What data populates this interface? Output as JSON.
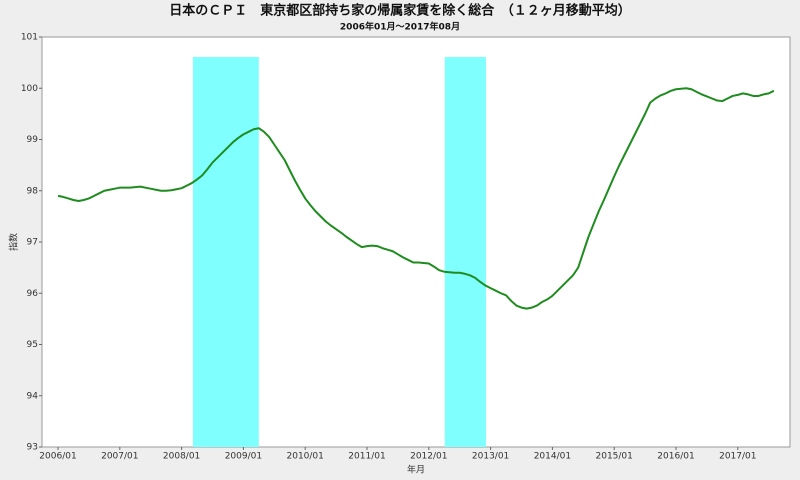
{
  "chart_data": {
    "type": "line",
    "title": "日本のＣＰＩ　東京都区部持ち家の帰属家賃を除く総合　（１２ヶ月移動平均）",
    "subtitle": "2006年01月～2017年08月",
    "x_label": "年月",
    "y_label": "指数",
    "color": "#1e8c1e",
    "shade_color": "#80ffff",
    "shaded_ranges": [
      [
        26.2,
        39.0
      ],
      [
        75.1,
        83.1
      ]
    ],
    "categories": [
      "2006/01",
      null,
      null,
      null,
      null,
      null,
      null,
      null,
      null,
      null,
      null,
      null,
      "2007/01",
      null,
      null,
      null,
      null,
      null,
      null,
      null,
      null,
      null,
      null,
      null,
      "2008/01",
      null,
      null,
      null,
      null,
      null,
      null,
      null,
      null,
      null,
      null,
      null,
      "2009/01",
      null,
      null,
      null,
      null,
      null,
      null,
      null,
      null,
      null,
      null,
      null,
      "2010/01",
      null,
      null,
      null,
      null,
      null,
      null,
      null,
      null,
      null,
      null,
      null,
      "2011/01",
      null,
      null,
      null,
      null,
      null,
      null,
      null,
      null,
      null,
      null,
      null,
      "2012/01",
      null,
      null,
      null,
      null,
      null,
      null,
      null,
      null,
      null,
      null,
      null,
      "2013/01",
      null,
      null,
      null,
      null,
      null,
      null,
      null,
      null,
      null,
      null,
      null,
      "2014/01",
      null,
      null,
      null,
      null,
      null,
      null,
      null,
      null,
      null,
      null,
      null,
      "2015/01",
      null,
      null,
      null,
      null,
      null,
      null,
      null,
      null,
      null,
      null,
      null,
      "2016/01",
      null,
      null,
      null,
      null,
      null,
      null,
      null,
      null,
      null,
      null,
      null,
      "2017/01",
      null,
      null,
      null,
      null,
      null,
      null,
      null
    ],
    "values": [
      97.9,
      97.88,
      97.85,
      97.82,
      97.8,
      97.82,
      97.85,
      97.9,
      97.95,
      98.0,
      98.02,
      98.04,
      98.06,
      98.06,
      98.06,
      98.07,
      98.08,
      98.06,
      98.04,
      98.02,
      98.0,
      98.0,
      98.01,
      98.03,
      98.05,
      98.1,
      98.15,
      98.22,
      98.3,
      98.42,
      98.55,
      98.65,
      98.75,
      98.85,
      98.95,
      99.03,
      99.1,
      99.15,
      99.2,
      99.22,
      99.15,
      99.05,
      98.9,
      98.75,
      98.6,
      98.4,
      98.2,
      98.02,
      97.85,
      97.72,
      97.6,
      97.5,
      97.4,
      97.32,
      97.25,
      97.18,
      97.1,
      97.03,
      96.96,
      96.9,
      96.92,
      96.93,
      96.92,
      96.88,
      96.85,
      96.82,
      96.76,
      96.7,
      96.65,
      96.6,
      96.6,
      96.59,
      96.58,
      96.52,
      96.45,
      96.42,
      96.41,
      96.4,
      96.4,
      96.38,
      96.35,
      96.3,
      96.22,
      96.15,
      96.1,
      96.05,
      96.0,
      95.96,
      95.85,
      95.76,
      95.72,
      95.7,
      95.72,
      95.76,
      95.83,
      95.88,
      95.95,
      96.05,
      96.15,
      96.25,
      96.35,
      96.5,
      96.8,
      97.1,
      97.35,
      97.6,
      97.82,
      98.05,
      98.28,
      98.5,
      98.7,
      98.9,
      99.1,
      99.3,
      99.5,
      99.72,
      99.8,
      99.86,
      99.9,
      99.95,
      99.98,
      99.99,
      100.0,
      99.98,
      99.93,
      99.88,
      99.84,
      99.8,
      99.76,
      99.75,
      99.8,
      99.85,
      99.87,
      99.9,
      99.88,
      99.85,
      99.85,
      99.88,
      99.9,
      99.95
    ],
    "ylim": [
      93,
      101
    ],
    "yticks": [
      93,
      94,
      95,
      96,
      97,
      98,
      99,
      100,
      101
    ],
    "grid": false
  }
}
